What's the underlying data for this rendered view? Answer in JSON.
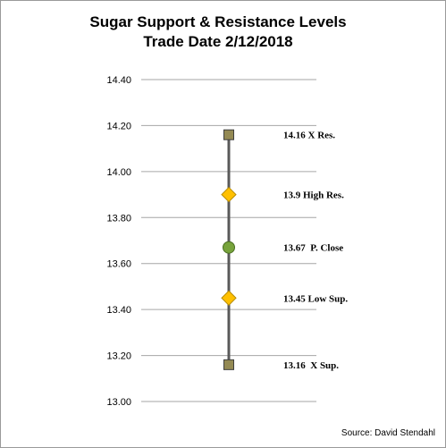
{
  "chart_data": {
    "type": "scatter",
    "title": "Sugar Support & Resistance Levels",
    "subtitle": "Trade Date 2/12/2018",
    "ylim": [
      13.0,
      14.4
    ],
    "yticks": [
      "14.40",
      "14.20",
      "14.00",
      "13.80",
      "13.60",
      "13.40",
      "13.20",
      "13.00"
    ],
    "grid": true,
    "legend": "none",
    "points": [
      {
        "y": 14.16,
        "marker": "square",
        "color": "#948A54",
        "label": "14.16 X Res."
      },
      {
        "y": 13.9,
        "marker": "diamond",
        "color": "#FFC000",
        "label": "13.9 High Res."
      },
      {
        "y": 13.67,
        "marker": "circle",
        "color": "#77A33B",
        "label": "13.67  P. Close"
      },
      {
        "y": 13.45,
        "marker": "diamond",
        "color": "#FFC000",
        "label": "13.45 Low Sup."
      },
      {
        "y": 13.16,
        "marker": "square",
        "color": "#948A54",
        "label": "13.16  X Sup."
      }
    ],
    "connector_color": "#595959",
    "source": "Source: David Stendahl"
  }
}
